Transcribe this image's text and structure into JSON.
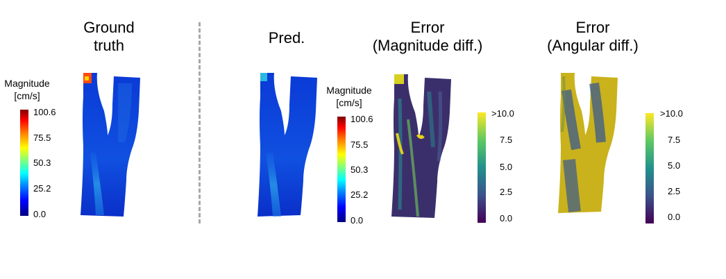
{
  "panels": {
    "ground_truth": {
      "title_line1": "Ground",
      "title_line2": "truth"
    },
    "pred": {
      "title": "Pred."
    },
    "error_mag": {
      "title_line1": "Error",
      "title_line2": "(Magnitude diff.)"
    },
    "error_ang": {
      "title_line1": "Error",
      "title_line2": "(Angular diff.)"
    }
  },
  "colorbar_magnitude": {
    "label_line1": "Magnitude",
    "label_line2": "[cm/s]",
    "ticks": [
      "100.6",
      "75.5",
      "50.3",
      "25.2",
      "0.0"
    ],
    "colormap": "jet",
    "range": [
      0.0,
      100.6
    ]
  },
  "colorbar_error": {
    "ticks": [
      ">10.0",
      "7.5",
      "5.0",
      "2.5",
      "0.0"
    ],
    "colormap": "viridis",
    "range": [
      0.0,
      10.0
    ]
  },
  "colors": {
    "divider": "#a8a8a8",
    "vessel_flow": "#1a3cd8",
    "vessel_core": "#2a7fd8",
    "error_mag_base": "#3b2f6b",
    "error_ang_base": "#c9b21c"
  }
}
